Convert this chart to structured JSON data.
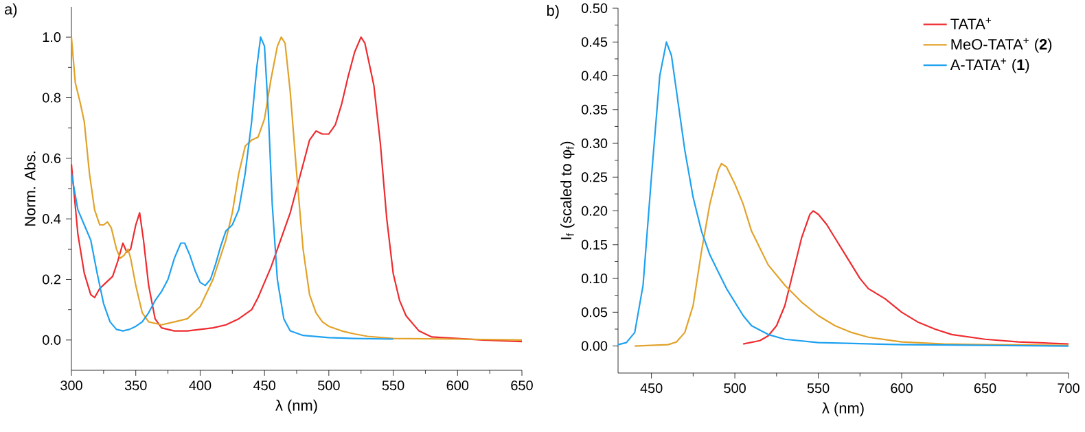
{
  "chart_data": [
    {
      "type": "line",
      "title": "a)",
      "xlabel": "λ (nm)",
      "ylabel": "Norm. Abs.",
      "xlim": [
        300,
        650
      ],
      "ylim": [
        -0.1,
        1.1
      ],
      "xticks": [
        300,
        350,
        400,
        450,
        500,
        550,
        600,
        650
      ],
      "yticks": [
        {
          "value": 0,
          "label": "0.0"
        },
        {
          "value": 0.2,
          "label": "0.2"
        },
        {
          "value": 0.4,
          "label": "0.4"
        },
        {
          "value": 0.6,
          "label": "0.6"
        },
        {
          "value": 0.8,
          "label": "0.8"
        },
        {
          "value": 1.0,
          "label": "1.0"
        }
      ],
      "grid": false,
      "legend": false,
      "series": [
        {
          "color": "#ee2b2f",
          "x": [
            300,
            305,
            310,
            315,
            318,
            322,
            327,
            332,
            336,
            340,
            343,
            346,
            350,
            353,
            356,
            360,
            365,
            370,
            380,
            390,
            400,
            410,
            420,
            430,
            440,
            445,
            450,
            455,
            460,
            465,
            470,
            475,
            480,
            485,
            490,
            495,
            500,
            505,
            510,
            515,
            520,
            525,
            528,
            532,
            535,
            540,
            545,
            550,
            555,
            560,
            570,
            580,
            600,
            620,
            650
          ],
          "values": [
            0.58,
            0.35,
            0.22,
            0.15,
            0.14,
            0.17,
            0.19,
            0.21,
            0.26,
            0.32,
            0.29,
            0.3,
            0.38,
            0.42,
            0.33,
            0.18,
            0.07,
            0.04,
            0.03,
            0.03,
            0.035,
            0.04,
            0.05,
            0.07,
            0.1,
            0.14,
            0.19,
            0.24,
            0.3,
            0.36,
            0.42,
            0.5,
            0.58,
            0.66,
            0.69,
            0.68,
            0.68,
            0.71,
            0.78,
            0.87,
            0.95,
            1.0,
            0.98,
            0.9,
            0.84,
            0.65,
            0.4,
            0.22,
            0.13,
            0.08,
            0.03,
            0.01,
            0.005,
            0.0,
            -0.005
          ]
        },
        {
          "color": "#e2a229",
          "x": [
            300,
            303,
            307,
            310,
            314,
            318,
            322,
            325,
            328,
            331,
            335,
            338,
            341,
            344,
            346,
            350,
            355,
            360,
            365,
            370,
            380,
            390,
            400,
            410,
            420,
            425,
            430,
            435,
            440,
            445,
            450,
            455,
            460,
            463,
            466,
            470,
            475,
            480,
            485,
            490,
            495,
            500,
            510,
            520,
            530,
            550,
            600,
            650
          ],
          "values": [
            1.0,
            0.85,
            0.78,
            0.72,
            0.55,
            0.43,
            0.38,
            0.38,
            0.39,
            0.37,
            0.3,
            0.27,
            0.28,
            0.3,
            0.27,
            0.18,
            0.09,
            0.06,
            0.055,
            0.05,
            0.06,
            0.07,
            0.11,
            0.2,
            0.33,
            0.42,
            0.55,
            0.64,
            0.66,
            0.67,
            0.73,
            0.86,
            0.97,
            1.0,
            0.98,
            0.82,
            0.55,
            0.3,
            0.15,
            0.09,
            0.06,
            0.045,
            0.03,
            0.02,
            0.012,
            0.005,
            0.003,
            0.0
          ]
        },
        {
          "color": "#1ea1f0",
          "x": [
            300,
            305,
            310,
            315,
            320,
            325,
            330,
            335,
            340,
            345,
            350,
            355,
            360,
            365,
            370,
            375,
            380,
            385,
            388,
            392,
            396,
            400,
            404,
            408,
            412,
            416,
            420,
            425,
            430,
            435,
            440,
            444,
            447,
            450,
            453,
            456,
            460,
            465,
            470,
            480,
            500,
            520,
            550
          ],
          "values": [
            0.55,
            0.43,
            0.38,
            0.33,
            0.22,
            0.12,
            0.06,
            0.035,
            0.03,
            0.035,
            0.045,
            0.06,
            0.09,
            0.13,
            0.16,
            0.2,
            0.27,
            0.32,
            0.32,
            0.28,
            0.23,
            0.19,
            0.18,
            0.2,
            0.25,
            0.31,
            0.36,
            0.38,
            0.43,
            0.55,
            0.72,
            0.9,
            1.0,
            0.97,
            0.75,
            0.45,
            0.2,
            0.07,
            0.03,
            0.015,
            0.008,
            0.005,
            0.003
          ]
        }
      ]
    },
    {
      "type": "line",
      "title": "b)",
      "xlabel": "λ (nm)",
      "ylabel": "I$_{f}$ (scaled to φ$_{f}$)",
      "xlim": [
        430,
        700
      ],
      "ylim": [
        -0.04,
        0.5
      ],
      "xticks": [
        450,
        500,
        550,
        600,
        650,
        700
      ],
      "yticks": [
        {
          "value": 0,
          "label": "0.00"
        },
        0.05,
        {
          "value": 0.1,
          "label": "0.10"
        },
        0.15,
        {
          "value": 0.2,
          "label": "0.20"
        },
        0.25,
        {
          "value": 0.3,
          "label": "0.30"
        },
        0.35,
        {
          "value": 0.4,
          "label": "0.40"
        },
        0.45,
        {
          "value": 0.5,
          "label": "0.50"
        }
      ],
      "grid": false,
      "legend": "top right",
      "series": [
        {
          "name": "TATA$^{+}$",
          "color": "#ee2b2f",
          "x": [
            505,
            515,
            520,
            525,
            530,
            535,
            540,
            545,
            547,
            550,
            555,
            560,
            565,
            570,
            575,
            580,
            590,
            600,
            610,
            620,
            630,
            650,
            670,
            700
          ],
          "values": [
            0.003,
            0.008,
            0.015,
            0.03,
            0.06,
            0.11,
            0.16,
            0.195,
            0.2,
            0.195,
            0.18,
            0.16,
            0.14,
            0.12,
            0.1,
            0.085,
            0.07,
            0.05,
            0.035,
            0.025,
            0.017,
            0.01,
            0.006,
            0.003
          ]
        },
        {
          "name": "MeO-TATA$^{+}$ (**2**)",
          "color": "#e2a229",
          "x": [
            440,
            460,
            465,
            470,
            475,
            480,
            485,
            490,
            492,
            495,
            500,
            505,
            510,
            520,
            530,
            540,
            550,
            560,
            570,
            580,
            600,
            625,
            650,
            700
          ],
          "values": [
            0.0,
            0.002,
            0.006,
            0.02,
            0.06,
            0.14,
            0.21,
            0.26,
            0.27,
            0.265,
            0.24,
            0.21,
            0.17,
            0.12,
            0.09,
            0.065,
            0.045,
            0.03,
            0.02,
            0.013,
            0.006,
            0.003,
            0.002,
            0.001
          ]
        },
        {
          "name": "A-TATA$^{+}$ (**1**)",
          "color": "#1ea1f0",
          "x": [
            430,
            435,
            440,
            445,
            450,
            455,
            459,
            462,
            466,
            470,
            475,
            480,
            485,
            490,
            495,
            500,
            505,
            510,
            520,
            530,
            550,
            600,
            650,
            700
          ],
          "values": [
            0.002,
            0.005,
            0.02,
            0.09,
            0.25,
            0.4,
            0.45,
            0.43,
            0.36,
            0.29,
            0.22,
            0.17,
            0.135,
            0.11,
            0.085,
            0.065,
            0.045,
            0.03,
            0.017,
            0.01,
            0.005,
            0.002,
            0.001,
            0.0
          ]
        }
      ]
    }
  ]
}
